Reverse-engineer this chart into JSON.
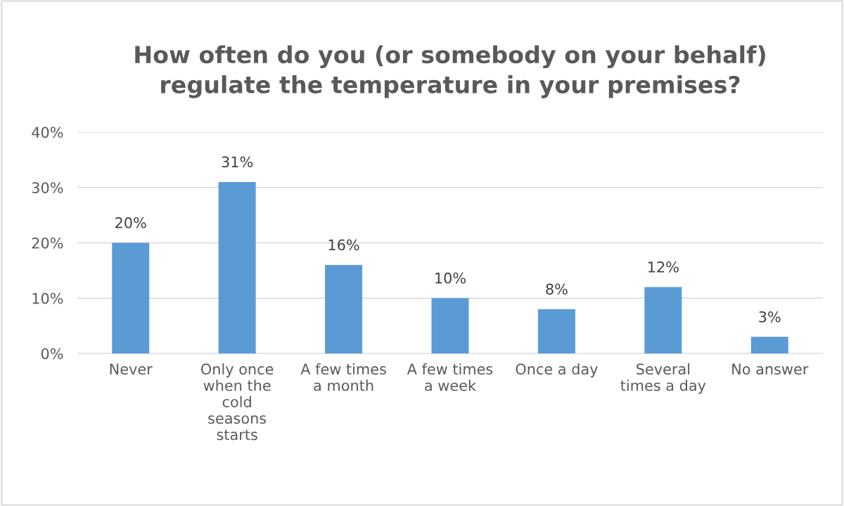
{
  "chart_data": {
    "type": "bar",
    "title": "How often do you (or somebody on your behalf)\nregulate the temperature in your premises?",
    "categories": [
      "Never",
      "Only once\nwhen the\ncold\nseasons\nstarts",
      "A few times\na month",
      "A few times\na week",
      "Once a day",
      "Several\ntimes a day",
      "No answer"
    ],
    "values": [
      20,
      31,
      16,
      10,
      8,
      12,
      3
    ],
    "value_labels": [
      "20%",
      "31%",
      "16%",
      "10%",
      "8%",
      "12%",
      "3%"
    ],
    "color": "#5b9bd5",
    "ylim": [
      0,
      40
    ],
    "yticks": [
      {
        "value": 0,
        "label": "0%"
      },
      {
        "value": 10,
        "label": "10%"
      },
      {
        "value": 20,
        "label": "20%"
      },
      {
        "value": 30,
        "label": "30%"
      },
      {
        "value": 40,
        "label": "40%"
      }
    ],
    "grid": "y"
  }
}
